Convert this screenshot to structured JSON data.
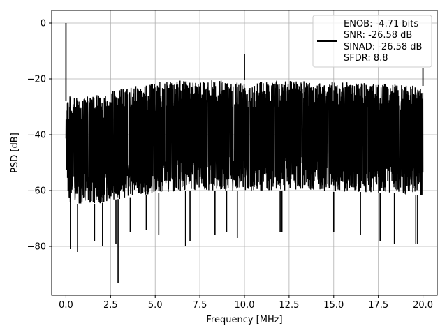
{
  "chart_data": {
    "type": "line",
    "title": "",
    "xlabel": "Frequency [MHz]",
    "ylabel": "PSD [dB]",
    "xlim": [
      -0.8,
      20.8
    ],
    "ylim": [
      -97.5,
      4.5
    ],
    "xticks": [
      0.0,
      2.5,
      5.0,
      7.5,
      10.0,
      12.5,
      15.0,
      17.5,
      20.0
    ],
    "xtick_labels": [
      "0.0",
      "2.5",
      "5.0",
      "7.5",
      "10.0",
      "12.5",
      "15.0",
      "17.5",
      "20.0"
    ],
    "yticks": [
      0,
      -20,
      -40,
      -60,
      -80
    ],
    "ytick_labels": [
      "0",
      "−20",
      "−40",
      "−60",
      "−80"
    ],
    "grid": true,
    "legend_position": "top-right",
    "line_color": "#000000",
    "series": [
      {
        "upper_envelope": {
          "x": [
            0.0,
            0.05,
            0.1,
            0.2,
            0.5,
            1.0,
            1.5,
            2.0,
            2.5,
            3.0,
            3.5,
            4.0,
            4.5,
            5.0,
            5.5,
            6.0,
            6.5,
            7.0,
            7.5,
            8.0,
            8.5,
            9.0,
            9.5,
            10.0,
            10.5,
            11.0,
            11.5,
            12.0,
            12.5,
            13.0,
            13.5,
            14.0,
            14.5,
            15.0,
            15.5,
            16.0,
            16.5,
            17.0,
            17.5,
            18.0,
            18.5,
            19.0,
            19.5,
            20.0
          ],
          "y": [
            -28,
            -23,
            -25,
            -26,
            -27,
            -26.5,
            -26,
            -25.5,
            -24.5,
            -23.5,
            -23,
            -22.5,
            -22,
            -21.5,
            -21,
            -21,
            -20.5,
            -20.5,
            -20,
            -20.5,
            -20.5,
            -20.5,
            -20.5,
            -20.5,
            -20.5,
            -20.5,
            -20.5,
            -20.5,
            -20.5,
            -20.5,
            -21,
            -21,
            -21,
            -21,
            -21,
            -21,
            -21.5,
            -21.5,
            -21.5,
            -22,
            -22,
            -22,
            -22.5,
            -22.5
          ]
        },
        "lower_envelope": {
          "x": [
            0.0,
            0.05,
            0.1,
            0.2,
            0.5,
            1.0,
            1.5,
            2.0,
            2.5,
            3.0,
            3.5,
            4.0,
            4.5,
            5.0,
            5.5,
            6.0,
            6.5,
            7.0,
            7.5,
            8.0,
            8.5,
            9.0,
            9.5,
            10.0,
            10.5,
            11.0,
            11.5,
            12.0,
            12.5,
            13.0,
            13.5,
            14.0,
            14.5,
            15.0,
            15.5,
            16.0,
            16.5,
            17.0,
            17.5,
            18.0,
            18.5,
            19.0,
            19.5,
            20.0
          ],
          "y": [
            -45,
            -55,
            -62,
            -64,
            -65,
            -65,
            -65,
            -64.5,
            -63.5,
            -63,
            -62.5,
            -62,
            -61.5,
            -61,
            -60.5,
            -60.5,
            -60,
            -60,
            -60,
            -60,
            -60,
            -60,
            -60,
            -60,
            -60,
            -60,
            -60,
            -60,
            -60,
            -60,
            -60,
            -60,
            -60,
            -60.5,
            -60.5,
            -60.5,
            -60.5,
            -61,
            -61,
            -61,
            -61,
            -61.5,
            -61.5,
            -62
          ]
        },
        "spikes": [
          {
            "x": 0.0,
            "y": 0.0
          },
          {
            "x": 10.0,
            "y": -11.0
          },
          {
            "x": 20.0,
            "y": -16.0
          }
        ],
        "dips": [
          {
            "x": 0.25,
            "y": -81.0
          },
          {
            "x": 0.65,
            "y": -82.0
          },
          {
            "x": 1.6,
            "y": -78.0
          },
          {
            "x": 2.05,
            "y": -80.0
          },
          {
            "x": 2.8,
            "y": -79.0
          },
          {
            "x": 2.92,
            "y": -93.0
          },
          {
            "x": 3.6,
            "y": -75.0
          },
          {
            "x": 4.5,
            "y": -74.0
          },
          {
            "x": 5.2,
            "y": -76.0
          },
          {
            "x": 6.7,
            "y": -80.0
          },
          {
            "x": 6.95,
            "y": -78.0
          },
          {
            "x": 8.35,
            "y": -76.0
          },
          {
            "x": 9.0,
            "y": -75.0
          },
          {
            "x": 9.6,
            "y": -77.0
          },
          {
            "x": 12.0,
            "y": -75.0
          },
          {
            "x": 12.1,
            "y": -75.0
          },
          {
            "x": 15.0,
            "y": -75.0
          },
          {
            "x": 16.5,
            "y": -76.0
          },
          {
            "x": 17.6,
            "y": -78.0
          },
          {
            "x": 18.4,
            "y": -79.0
          },
          {
            "x": 19.6,
            "y": -79.0
          },
          {
            "x": 19.7,
            "y": -79.0
          }
        ]
      }
    ],
    "legend": {
      "lines": [
        "ENOB: -4.71 bits",
        "SNR: -26.58 dB",
        "SINAD: -26.58 dB",
        "SFDR: 8.8"
      ]
    }
  }
}
